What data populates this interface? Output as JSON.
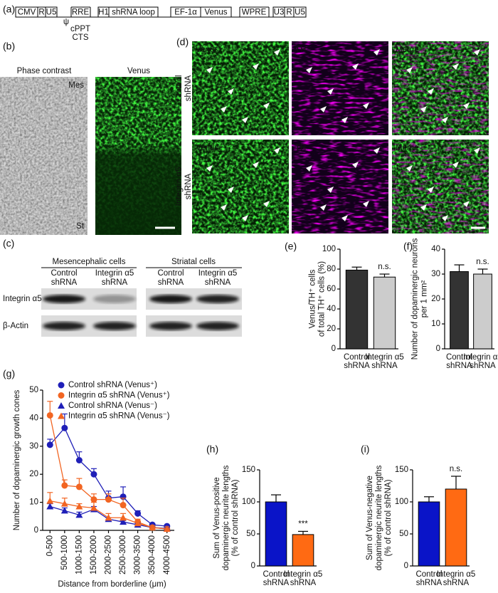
{
  "construct": {
    "label": "(a)",
    "elements": [
      "CMV",
      "R",
      "U5",
      "H1",
      "shRNA loop",
      "EF-1α",
      "Venus",
      "U3",
      "R",
      "U5"
    ],
    "line_labels": [
      "RRE",
      "WPRE"
    ],
    "sub_labels": [
      "ψ",
      "cPPT",
      "CTS"
    ]
  },
  "panel_b": {
    "label": "(b)",
    "titles": [
      "Phase contrast",
      "Venus"
    ],
    "regions": [
      "Mes",
      "St"
    ]
  },
  "panel_d": {
    "label": "(d)",
    "columns": [
      "Venus",
      "TH",
      "Merge"
    ],
    "rows": [
      [
        "Control",
        "shRNA"
      ],
      [
        "Integrin α5",
        "shRNA"
      ]
    ]
  },
  "panel_c": {
    "label": "(c)",
    "groups": [
      "Mesencephalic cells",
      "Striatal cells"
    ],
    "lanes": [
      [
        "Control",
        "shRNA"
      ],
      [
        "Integrin α5",
        "shRNA"
      ],
      [
        "Control",
        "shRNA"
      ],
      [
        "Integrin α5",
        "shRNA"
      ]
    ],
    "proteins": [
      "Integrin α5",
      "β-Actin"
    ]
  },
  "chart_data": [
    {
      "type": "bar",
      "label": "(e)",
      "ylabel": [
        "Venus/TH⁺ cells",
        "of total TH⁺ cells  (%)"
      ],
      "categories": [
        [
          "Control",
          "shRNA"
        ],
        [
          "Integrin α5",
          "shRNA"
        ]
      ],
      "values": [
        79,
        72
      ],
      "errors": [
        3,
        3
      ],
      "colors": [
        "#333333",
        "#cccccc"
      ],
      "ylim": [
        0,
        100
      ],
      "yticks": [
        0,
        20,
        40,
        60,
        80,
        100
      ],
      "annotation": "n.s."
    },
    {
      "type": "bar",
      "label": "(f)",
      "ylabel": [
        "Number of dopaminergic neurons",
        "per 1 mm²"
      ],
      "categories": [
        [
          "Control",
          "shRNA"
        ],
        [
          "Integrin α5",
          "shRNA"
        ]
      ],
      "values": [
        31,
        30
      ],
      "errors": [
        2.7,
        2
      ],
      "colors": [
        "#333333",
        "#cccccc"
      ],
      "ylim": [
        0,
        40
      ],
      "yticks": [
        0,
        10,
        20,
        30,
        40
      ],
      "annotation": "n.s."
    },
    {
      "type": "line",
      "label": "(g)",
      "xlabel": "Distance from borderline (μm)",
      "ylabel": [
        "Number of dopaminergic growth cones"
      ],
      "categories": [
        "0-500",
        "500-1000",
        "1000-1500",
        "1500-2000",
        "2000-2500",
        "2500-3000",
        "3000-3500",
        "3500-4000",
        "4000-4500"
      ],
      "ylim": [
        0,
        50
      ],
      "yticks": [
        0,
        10,
        20,
        30,
        40,
        50
      ],
      "series": [
        {
          "name": "Control shRNA (Venus⁺)",
          "color": "#1f1fb8",
          "marker": "circle",
          "values": [
            30.5,
            36.5,
            25,
            20,
            11.5,
            12,
            6,
            2,
            1.5
          ],
          "errors": [
            2,
            5,
            3,
            2,
            2.5,
            3.5,
            1,
            0.5,
            0.3
          ]
        },
        {
          "name": "Integrin α5 shRNA (Venus⁺)",
          "color": "#f26522",
          "marker": "circle",
          "values": [
            41,
            16,
            15.5,
            11,
            11,
            9,
            3,
            1,
            0.5
          ],
          "errors": [
            5,
            2,
            3,
            2,
            2,
            2.5,
            1,
            0.5,
            0.3
          ]
        },
        {
          "name": "Control shRNA (Venus⁻)",
          "color": "#1f1fb8",
          "marker": "triangle",
          "values": [
            8.5,
            7,
            5.5,
            7.5,
            4,
            3,
            2,
            1,
            0.7
          ],
          "errors": [
            1,
            1,
            1,
            1,
            0.5,
            0.5,
            0.5,
            0.3,
            0.2
          ]
        },
        {
          "name": "Integrin α5 shRNA (Venus⁻)",
          "color": "#f26522",
          "marker": "triangle",
          "values": [
            10.5,
            9.5,
            8.5,
            8,
            4.5,
            4.5,
            2.5,
            1,
            0.5
          ],
          "errors": [
            3,
            2,
            1,
            2,
            1.5,
            1.5,
            0.5,
            0.3,
            0.2
          ]
        }
      ]
    },
    {
      "type": "bar",
      "label": "(h)",
      "ylabel": [
        "Sum of Venus-positive",
        "dopaminergic neurite lengths",
        "(% of control shRNA)"
      ],
      "categories": [
        [
          "Control",
          "shRNA"
        ],
        [
          "Integrin α5",
          "shRNA"
        ]
      ],
      "values": [
        100,
        49
      ],
      "errors": [
        11,
        5
      ],
      "colors": [
        "#0a14c8",
        "#ff6a13"
      ],
      "ylim": [
        0,
        150
      ],
      "yticks": [
        0,
        50,
        100,
        150
      ],
      "annotation": "***"
    },
    {
      "type": "bar",
      "label": "(i)",
      "ylabel": [
        "Sum of Venus-negative",
        "dopaminergic neurite lengths",
        "(% of control shRNA)"
      ],
      "categories": [
        [
          "Control",
          "shRNA"
        ],
        [
          "Integrin α5",
          "shRNA"
        ]
      ],
      "values": [
        100,
        120
      ],
      "errors": [
        8,
        20
      ],
      "colors": [
        "#0a14c8",
        "#ff6a13"
      ],
      "ylim": [
        0,
        150
      ],
      "yticks": [
        0,
        50,
        100,
        150
      ],
      "annotation": "n.s."
    }
  ]
}
